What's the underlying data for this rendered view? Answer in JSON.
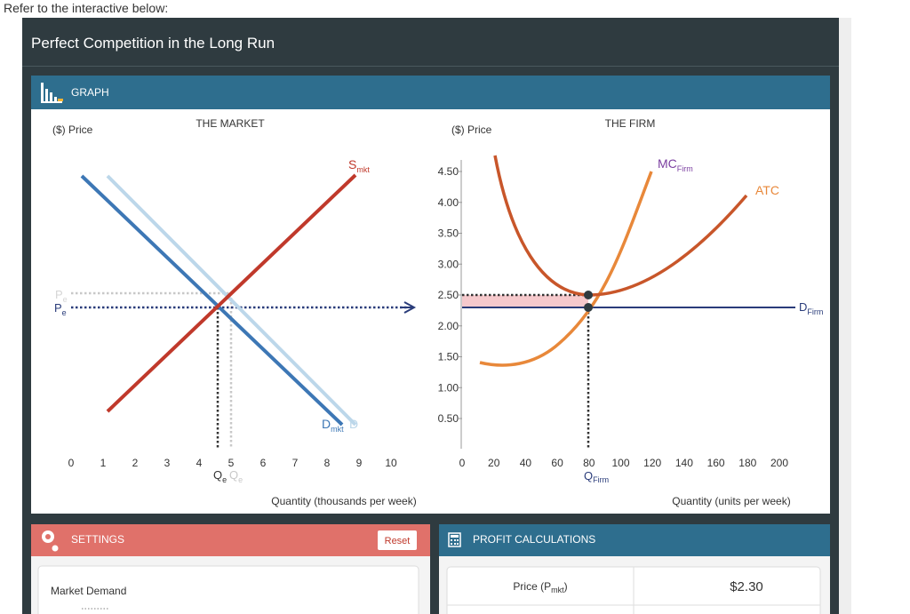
{
  "instruction": "Refer to the interactive below:",
  "title": "Perfect Competition in the Long Run",
  "graph": {
    "heading": "GRAPH",
    "market": {
      "title": "THE MARKET",
      "y_label": "($) Price",
      "x_label": "Quantity (thousands per week)",
      "x_ticks": [
        "0",
        "1",
        "2",
        "3",
        "4",
        "5",
        "6",
        "7",
        "8",
        "9",
        "10"
      ],
      "supply": {
        "main": "S",
        "sub": "mkt"
      },
      "demand": {
        "main": "D",
        "sub": "mkt"
      },
      "demand_new": "D",
      "price": {
        "main": "P",
        "sub": "e"
      },
      "price_new": {
        "main": "P",
        "sub": "e"
      },
      "quantity": {
        "main": "Q",
        "sub": "e"
      },
      "quantity_new": {
        "main": "Q",
        "sub": "e"
      }
    },
    "firm": {
      "title": "THE FIRM",
      "y_label": "($) Price",
      "x_label": "Quantity (units per week)",
      "y_ticks": [
        "4.50",
        "4.00",
        "3.50",
        "3.00",
        "2.50",
        "2.00",
        "1.50",
        "1.00",
        "0.50"
      ],
      "x_ticks": [
        "0",
        "20",
        "40",
        "60",
        "80",
        "100",
        "120",
        "140",
        "160",
        "180",
        "200"
      ],
      "mc": {
        "main": "MC",
        "sub": "Firm"
      },
      "atc": "ATC",
      "demand": {
        "main": "D",
        "sub": "Firm"
      },
      "quantity": {
        "main": "Q",
        "sub": "Firm"
      }
    }
  },
  "settings": {
    "heading": "SETTINGS",
    "reset": "Reset",
    "market_demand": "Market Demand"
  },
  "profit": {
    "heading": "PROFIT CALCULATIONS",
    "rows": [
      [
        {
          "text": "Price (P",
          "sub": "mkt",
          "after": ")"
        },
        "$2.30"
      ]
    ]
  }
}
